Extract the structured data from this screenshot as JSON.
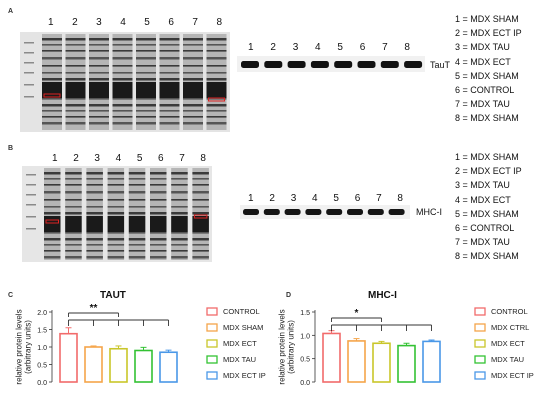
{
  "panels": {
    "a": {
      "letter": "A",
      "band_label": "TauT",
      "lanes": [
        "1",
        "2",
        "3",
        "4",
        "5",
        "6",
        "7",
        "8"
      ],
      "legend": [
        "1 = MDX SHAM",
        "2 = MDX ECT IP",
        "3 = MDX TAU",
        "4 = MDX ECT",
        "5 = MDX SHAM",
        "6 = CONTROL",
        "7 = MDX TAU",
        "8 = MDX SHAM"
      ]
    },
    "b": {
      "letter": "B",
      "band_label": "MHC-I",
      "lanes": [
        "1",
        "2",
        "3",
        "4",
        "5",
        "6",
        "7",
        "8"
      ],
      "legend": [
        "1 = MDX SHAM",
        "2 = MDX ECT IP",
        "3 = MDX TAU",
        "4 = MDX ECT",
        "5 = MDX SHAM",
        "6 = CONTROL",
        "7 = MDX TAU",
        "8 = MDX SHAM"
      ]
    },
    "c": {
      "letter": "C"
    },
    "d": {
      "letter": "D"
    }
  },
  "chart_data": [
    {
      "type": "bar",
      "title": "TAUT",
      "ylabel": "relative protein levels (arbitrary units)",
      "ylim": [
        0,
        2.0
      ],
      "yticks": [
        "0.0",
        "0.5",
        "1.0",
        "1.5",
        "2.0"
      ],
      "categories": [
        "CONTROL",
        "MDX SHAM",
        "MDX ECT",
        "MDX TAU",
        "MDX ECT IP"
      ],
      "values": [
        1.38,
        1.0,
        0.95,
        0.9,
        0.85
      ],
      "errors": [
        0.17,
        0.03,
        0.08,
        0.09,
        0.06
      ],
      "colors": [
        "#f26b6b",
        "#f5a54a",
        "#c9c62a",
        "#33c233",
        "#4a98e8"
      ],
      "significance": "**",
      "legend_position": "right",
      "grid": false
    },
    {
      "type": "bar",
      "title": "MHC-I",
      "ylabel": "relative protein levels (arbitrary units)",
      "ylim": [
        0,
        1.5
      ],
      "yticks": [
        "0.0",
        "0.5",
        "1.0",
        "1.5"
      ],
      "categories": [
        "CONTROL",
        "MDX CTRL",
        "MDX ECT",
        "MDX TAU",
        "MDX ECT IP"
      ],
      "values": [
        1.04,
        0.88,
        0.83,
        0.78,
        0.87
      ],
      "errors": [
        0.06,
        0.05,
        0.04,
        0.05,
        0.03
      ],
      "colors": [
        "#f26b6b",
        "#f5a54a",
        "#c9c62a",
        "#33c233",
        "#4a98e8"
      ],
      "significance": "*",
      "legend_position": "right",
      "grid": false
    }
  ]
}
